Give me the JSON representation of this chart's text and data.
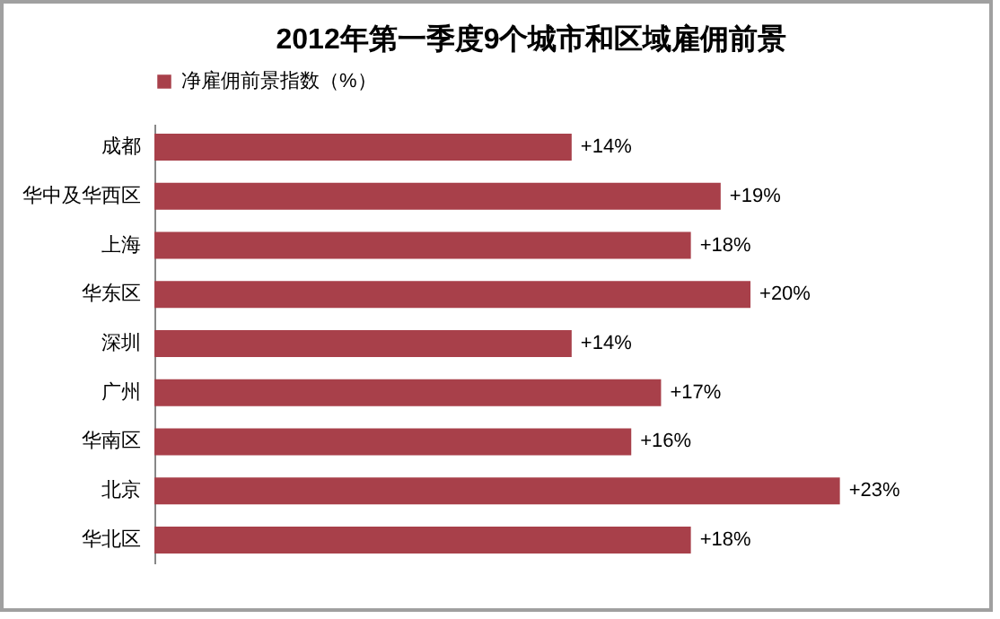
{
  "chart_data": {
    "type": "bar",
    "orientation": "horizontal",
    "title": "2012年第一季度9个城市和区域雇佣前景",
    "categories": [
      "成都",
      "华中及华西区",
      "上海",
      "华东区",
      "深圳",
      "广州",
      "华南区",
      "北京",
      "华北区"
    ],
    "series": [
      {
        "name": "净雇佣前景指数（%）",
        "color": "#a8404a",
        "values": [
          14,
          19,
          18,
          20,
          14,
          17,
          16,
          23,
          18
        ],
        "value_labels": [
          "+14%",
          "+19%",
          "+18%",
          "+20%",
          "+14%",
          "+17%",
          "+16%",
          "+23%",
          "+18%"
        ]
      }
    ],
    "legend": "top",
    "grid": false
  }
}
